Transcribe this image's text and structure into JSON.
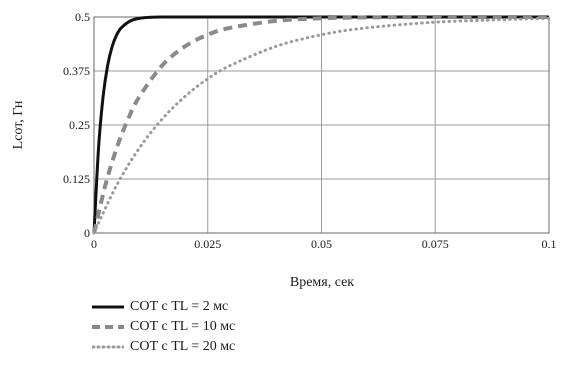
{
  "chart_data": {
    "type": "line",
    "xlabel": "Время, сек",
    "ylabel": "Lсот, Гн",
    "xlim": [
      0,
      0.1
    ],
    "ylim": [
      0,
      0.5
    ],
    "x_ticks": [
      "0",
      "0.025",
      "0.05",
      "0.075",
      "0.1"
    ],
    "y_ticks": [
      "0",
      "0.125",
      "0.25",
      "0.375",
      "0.5"
    ],
    "grid": true,
    "legend_position": "bottom",
    "series": [
      {
        "name": "СОТ с TL = 2 мс",
        "style": "solid",
        "color": "#111111",
        "x": [
          0,
          0.001,
          0.002,
          0.003,
          0.004,
          0.005,
          0.006,
          0.008,
          0.01,
          0.012,
          0.015,
          0.02,
          0.03,
          0.05,
          0.075,
          0.1
        ],
        "y": [
          0,
          0.197,
          0.316,
          0.388,
          0.432,
          0.459,
          0.475,
          0.491,
          0.497,
          0.499,
          0.5,
          0.5,
          0.5,
          0.5,
          0.5,
          0.5
        ]
      },
      {
        "name": "СОТ с TL = 10 мс",
        "style": "dashed",
        "color": "#8a8a8a",
        "x": [
          0,
          0.0025,
          0.005,
          0.0075,
          0.01,
          0.015,
          0.02,
          0.025,
          0.03,
          0.04,
          0.05,
          0.06,
          0.075,
          0.1
        ],
        "y": [
          0,
          0.111,
          0.197,
          0.264,
          0.316,
          0.388,
          0.432,
          0.459,
          0.475,
          0.491,
          0.497,
          0.499,
          0.5,
          0.5
        ]
      },
      {
        "name": "СОТ с TL = 20 мс",
        "style": "dotted",
        "color": "#9a9a9a",
        "x": [
          0,
          0.005,
          0.01,
          0.015,
          0.02,
          0.025,
          0.03,
          0.04,
          0.05,
          0.06,
          0.075,
          0.09,
          0.1
        ],
        "y": [
          0,
          0.111,
          0.197,
          0.264,
          0.316,
          0.357,
          0.388,
          0.432,
          0.459,
          0.475,
          0.488,
          0.494,
          0.497
        ]
      }
    ]
  }
}
